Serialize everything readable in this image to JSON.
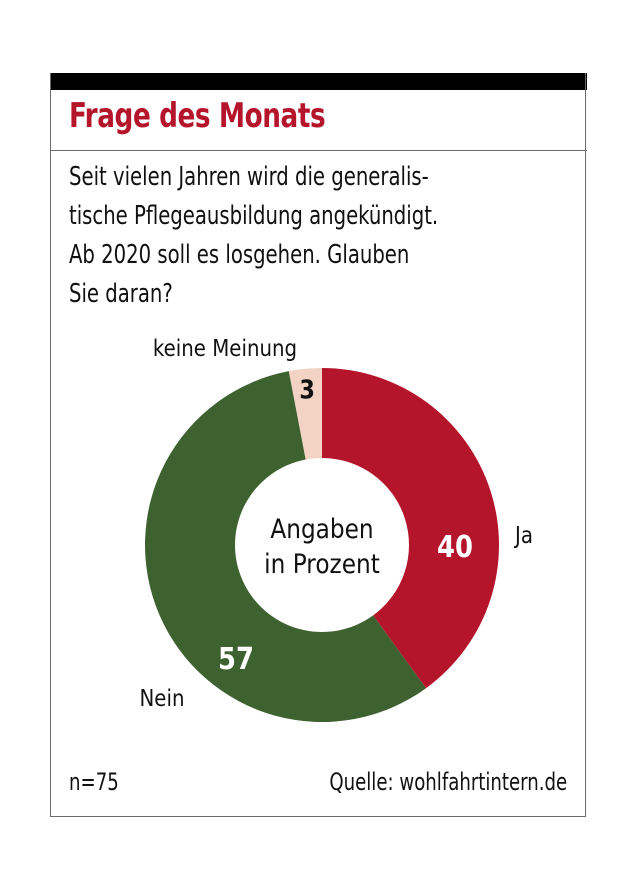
{
  "header": {
    "title": "Frage des Monats"
  },
  "question": {
    "lines": [
      "Seit vielen Jahren wird die generalis-",
      "tische Pflegeausbildung angekündigt.",
      "Ab 2020 soll es losgehen. Glauben",
      "Sie daran?"
    ]
  },
  "chart_data": {
    "type": "pie",
    "donut": true,
    "center_label": [
      "Angaben",
      "in Prozent"
    ],
    "unit": "%",
    "start": "12 o'clock, clockwise",
    "slices": [
      {
        "name": "Ja",
        "value": 40,
        "color": "#b5152b",
        "label_color": "#ffffff"
      },
      {
        "name": "Nein",
        "value": 57,
        "color": "#3e6130",
        "label_color": "#ffffff"
      },
      {
        "name": "keine Meinung",
        "value": 3,
        "color": "#f2d3c4",
        "label_color": "#111111"
      }
    ]
  },
  "footer": {
    "sample": "n=75",
    "source": "Quelle: wohlfahrtintern.de"
  }
}
